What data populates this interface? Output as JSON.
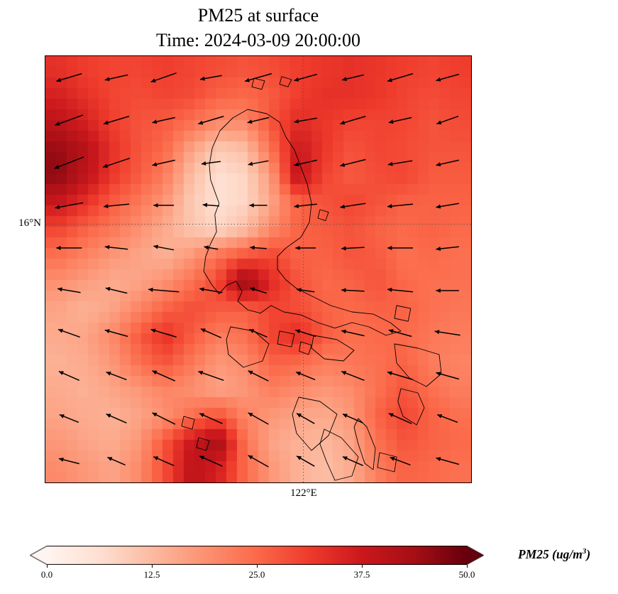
{
  "title": {
    "line1": "PM25 at surface",
    "line2": "Time: 2024-03-09 20:00:00"
  },
  "axes": {
    "y_tick_label": "16°N",
    "x_tick_label": "122°E"
  },
  "colorbar": {
    "ticks": [
      "0.0",
      "12.5",
      "25.0",
      "37.5",
      "50.0"
    ],
    "label_prefix": "PM25 (ug/m",
    "label_sup": "3",
    "label_suffix": ")"
  },
  "chart_data": {
    "type": "heatmap",
    "title": "PM25 at surface",
    "subtitle": "Time: 2024-03-09 20:00:00",
    "variable": "PM25",
    "units": "ug/m3",
    "vmin": 0,
    "vmax": 50,
    "colormap": "Reds",
    "colormap_stops": [
      {
        "t": 0.0,
        "color": "#fff5f0"
      },
      {
        "t": 0.125,
        "color": "#fee0d2"
      },
      {
        "t": 0.25,
        "color": "#fcbba1"
      },
      {
        "t": 0.375,
        "color": "#fc9272"
      },
      {
        "t": 0.5,
        "color": "#fb6a4a"
      },
      {
        "t": 0.625,
        "color": "#ef3b2c"
      },
      {
        "t": 0.75,
        "color": "#cb181d"
      },
      {
        "t": 0.875,
        "color": "#a50f15"
      },
      {
        "t": 1.0,
        "color": "#67000d"
      }
    ],
    "x_tick": {
      "label": "122°E",
      "frac": 0.606
    },
    "y_tick": {
      "label": "16°N",
      "frac": 0.394
    },
    "grid_rows": 16,
    "grid_cols": 16,
    "grid": [
      [
        33,
        31,
        30,
        30,
        31,
        30,
        29,
        28,
        29,
        31,
        32,
        33,
        32,
        31,
        30,
        31
      ],
      [
        36,
        33,
        30,
        29,
        30,
        29,
        26,
        25,
        27,
        31,
        33,
        33,
        32,
        30,
        29,
        30
      ],
      [
        40,
        36,
        31,
        28,
        27,
        24,
        20,
        20,
        28,
        34,
        32,
        30,
        30,
        30,
        28,
        29
      ],
      [
        45,
        41,
        33,
        28,
        25,
        16,
        10,
        12,
        24,
        38,
        32,
        28,
        30,
        29,
        28,
        28
      ],
      [
        46,
        40,
        32,
        27,
        22,
        12,
        6,
        8,
        18,
        40,
        30,
        27,
        29,
        30,
        27,
        27
      ],
      [
        38,
        33,
        27,
        23,
        18,
        10,
        6,
        8,
        16,
        26,
        28,
        30,
        28,
        26,
        26,
        26
      ],
      [
        30,
        26,
        23,
        19,
        15,
        11,
        8,
        12,
        20,
        26,
        27,
        28,
        26,
        25,
        26,
        25
      ],
      [
        24,
        21,
        18,
        16,
        14,
        18,
        24,
        28,
        30,
        26,
        26,
        28,
        27,
        24,
        25,
        24
      ],
      [
        19,
        17,
        15,
        16,
        19,
        24,
        30,
        46,
        34,
        28,
        25,
        26,
        28,
        25,
        24,
        24
      ],
      [
        16,
        14,
        16,
        21,
        26,
        29,
        27,
        26,
        30,
        29,
        26,
        25,
        26,
        26,
        24,
        23
      ],
      [
        15,
        16,
        20,
        27,
        33,
        27,
        22,
        24,
        30,
        34,
        27,
        24,
        25,
        25,
        23,
        22
      ],
      [
        14,
        15,
        18,
        24,
        28,
        23,
        18,
        20,
        26,
        25,
        22,
        23,
        24,
        26,
        22,
        21
      ],
      [
        15,
        14,
        16,
        18,
        21,
        19,
        16,
        18,
        22,
        20,
        18,
        20,
        24,
        28,
        24,
        22
      ],
      [
        16,
        15,
        14,
        16,
        19,
        24,
        28,
        21,
        18,
        16,
        15,
        18,
        26,
        30,
        26,
        24
      ],
      [
        18,
        16,
        15,
        18,
        28,
        38,
        44,
        24,
        16,
        14,
        13,
        16,
        24,
        28,
        26,
        25
      ],
      [
        20,
        18,
        16,
        20,
        29,
        40,
        36,
        25,
        18,
        14,
        12,
        15,
        22,
        26,
        25,
        24
      ]
    ],
    "wind": {
      "scale": 36,
      "u": [
        [
          -1.0,
          -0.9,
          -1.0,
          -0.85,
          -1.05,
          -0.9,
          -0.85,
          -1.0,
          -0.9
        ],
        [
          -1.1,
          -1.0,
          -0.9,
          -1.0,
          -0.85,
          -0.9,
          -1.0,
          -0.9,
          -0.85
        ],
        [
          -1.15,
          -1.05,
          -0.9,
          -0.75,
          -0.8,
          -0.9,
          -1.0,
          -0.95,
          -0.9
        ],
        [
          -1.1,
          -1.0,
          -0.8,
          -0.65,
          -0.7,
          -0.9,
          -1.0,
          -1.0,
          -0.9
        ],
        [
          -1.0,
          -0.9,
          -0.8,
          -0.55,
          -0.65,
          -0.8,
          -0.9,
          -1.0,
          -0.9
        ],
        [
          -0.9,
          -0.85,
          -1.2,
          -0.9,
          -0.65,
          -0.7,
          -0.9,
          -1.0,
          -0.9
        ],
        [
          -0.85,
          -0.9,
          -1.0,
          -0.8,
          -0.7,
          -0.8,
          -0.9,
          -0.9,
          -1.0
        ],
        [
          -0.8,
          -0.8,
          -0.9,
          -1.0,
          -0.8,
          -0.75,
          -0.9,
          -1.0,
          -0.9
        ],
        [
          -0.75,
          -0.8,
          -0.9,
          -0.9,
          -0.8,
          -0.7,
          -0.8,
          -0.9,
          -0.8
        ],
        [
          -0.8,
          -0.7,
          -0.8,
          -0.9,
          -0.8,
          -0.7,
          -0.8,
          -0.8,
          -0.9
        ]
      ],
      "v": [
        [
          -0.3,
          -0.2,
          -0.35,
          -0.15,
          -0.3,
          -0.25,
          -0.2,
          -0.3,
          -0.25
        ],
        [
          -0.4,
          -0.3,
          -0.2,
          -0.3,
          -0.2,
          -0.15,
          -0.3,
          -0.2,
          -0.3
        ],
        [
          -0.45,
          -0.35,
          -0.2,
          -0.1,
          -0.15,
          -0.2,
          -0.25,
          -0.15,
          -0.2
        ],
        [
          -0.2,
          -0.1,
          0.0,
          0.05,
          0.0,
          -0.1,
          -0.15,
          -0.1,
          -0.15
        ],
        [
          0.0,
          0.1,
          0.15,
          0.1,
          0.05,
          0.0,
          -0.05,
          0.0,
          -0.1
        ],
        [
          0.15,
          0.2,
          0.1,
          0.15,
          0.2,
          0.1,
          0.05,
          0.1,
          0.0
        ],
        [
          0.3,
          0.25,
          0.3,
          0.35,
          0.3,
          0.25,
          0.2,
          0.25,
          0.15
        ],
        [
          0.35,
          0.3,
          0.4,
          0.35,
          0.4,
          0.3,
          0.35,
          0.3,
          0.25
        ],
        [
          0.3,
          0.35,
          0.45,
          0.4,
          0.45,
          0.4,
          0.35,
          0.4,
          0.3
        ],
        [
          0.2,
          0.3,
          0.35,
          0.4,
          0.45,
          0.4,
          0.35,
          0.3,
          0.25
        ]
      ]
    },
    "coastlines": [
      {
        "name": "luzon",
        "points": [
          [
            0.475,
            0.125
          ],
          [
            0.52,
            0.135
          ],
          [
            0.55,
            0.155
          ],
          [
            0.565,
            0.19
          ],
          [
            0.585,
            0.22
          ],
          [
            0.6,
            0.26
          ],
          [
            0.615,
            0.3
          ],
          [
            0.625,
            0.345
          ],
          [
            0.62,
            0.39
          ],
          [
            0.6,
            0.425
          ],
          [
            0.565,
            0.45
          ],
          [
            0.545,
            0.47
          ],
          [
            0.545,
            0.5
          ],
          [
            0.565,
            0.525
          ],
          [
            0.59,
            0.545
          ],
          [
            0.63,
            0.565
          ],
          [
            0.67,
            0.585
          ],
          [
            0.72,
            0.6
          ],
          [
            0.77,
            0.605
          ],
          [
            0.81,
            0.625
          ],
          [
            0.835,
            0.645
          ],
          [
            0.8,
            0.655
          ],
          [
            0.76,
            0.635
          ],
          [
            0.72,
            0.625
          ],
          [
            0.68,
            0.638
          ],
          [
            0.64,
            0.625
          ],
          [
            0.6,
            0.607
          ],
          [
            0.56,
            0.6
          ],
          [
            0.53,
            0.585
          ],
          [
            0.505,
            0.603
          ],
          [
            0.475,
            0.595
          ],
          [
            0.452,
            0.575
          ],
          [
            0.462,
            0.552
          ],
          [
            0.448,
            0.528
          ],
          [
            0.425,
            0.538
          ],
          [
            0.408,
            0.558
          ],
          [
            0.39,
            0.535
          ],
          [
            0.372,
            0.505
          ],
          [
            0.376,
            0.472
          ],
          [
            0.388,
            0.44
          ],
          [
            0.402,
            0.412
          ],
          [
            0.398,
            0.372
          ],
          [
            0.408,
            0.345
          ],
          [
            0.398,
            0.318
          ],
          [
            0.388,
            0.29
          ],
          [
            0.385,
            0.255
          ],
          [
            0.392,
            0.215
          ],
          [
            0.41,
            0.175
          ],
          [
            0.44,
            0.145
          ]
        ]
      },
      {
        "name": "mindoro",
        "points": [
          [
            0.435,
            0.635
          ],
          [
            0.49,
            0.645
          ],
          [
            0.525,
            0.675
          ],
          [
            0.51,
            0.715
          ],
          [
            0.465,
            0.73
          ],
          [
            0.43,
            0.7
          ],
          [
            0.425,
            0.665
          ]
        ]
      },
      {
        "name": "marinduque",
        "points": [
          [
            0.55,
            0.645
          ],
          [
            0.585,
            0.652
          ],
          [
            0.578,
            0.682
          ],
          [
            0.545,
            0.675
          ]
        ]
      },
      {
        "name": "burias",
        "points": [
          [
            0.6,
            0.67
          ],
          [
            0.625,
            0.678
          ],
          [
            0.618,
            0.7
          ],
          [
            0.596,
            0.692
          ]
        ]
      },
      {
        "name": "masbate",
        "points": [
          [
            0.63,
            0.655
          ],
          [
            0.685,
            0.665
          ],
          [
            0.725,
            0.69
          ],
          [
            0.7,
            0.715
          ],
          [
            0.655,
            0.71
          ],
          [
            0.625,
            0.685
          ]
        ]
      },
      {
        "name": "catanduanes",
        "points": [
          [
            0.825,
            0.585
          ],
          [
            0.858,
            0.592
          ],
          [
            0.852,
            0.622
          ],
          [
            0.82,
            0.615
          ]
        ]
      },
      {
        "name": "polillo",
        "points": [
          [
            0.645,
            0.36
          ],
          [
            0.665,
            0.366
          ],
          [
            0.658,
            0.386
          ],
          [
            0.64,
            0.38
          ]
        ]
      },
      {
        "name": "samar",
        "points": [
          [
            0.82,
            0.675
          ],
          [
            0.875,
            0.685
          ],
          [
            0.925,
            0.7
          ],
          [
            0.93,
            0.745
          ],
          [
            0.895,
            0.775
          ],
          [
            0.855,
            0.755
          ],
          [
            0.825,
            0.72
          ]
        ]
      },
      {
        "name": "leyte",
        "points": [
          [
            0.835,
            0.78
          ],
          [
            0.875,
            0.79
          ],
          [
            0.89,
            0.825
          ],
          [
            0.872,
            0.865
          ],
          [
            0.84,
            0.845
          ],
          [
            0.828,
            0.81
          ]
        ]
      },
      {
        "name": "panay",
        "points": [
          [
            0.595,
            0.8
          ],
          [
            0.645,
            0.81
          ],
          [
            0.685,
            0.84
          ],
          [
            0.665,
            0.89
          ],
          [
            0.625,
            0.925
          ],
          [
            0.59,
            0.885
          ],
          [
            0.58,
            0.84
          ]
        ]
      },
      {
        "name": "negros",
        "points": [
          [
            0.655,
            0.875
          ],
          [
            0.695,
            0.895
          ],
          [
            0.735,
            0.94
          ],
          [
            0.72,
            0.985
          ],
          [
            0.68,
            0.995
          ],
          [
            0.66,
            0.95
          ],
          [
            0.645,
            0.91
          ]
        ]
      },
      {
        "name": "cebu",
        "points": [
          [
            0.735,
            0.85
          ],
          [
            0.755,
            0.87
          ],
          [
            0.775,
            0.92
          ],
          [
            0.77,
            0.97
          ],
          [
            0.75,
            0.955
          ],
          [
            0.735,
            0.91
          ],
          [
            0.725,
            0.87
          ]
        ]
      },
      {
        "name": "bohol",
        "points": [
          [
            0.785,
            0.93
          ],
          [
            0.825,
            0.94
          ],
          [
            0.82,
            0.975
          ],
          [
            0.78,
            0.965
          ]
        ]
      },
      {
        "name": "babuyan-1",
        "points": [
          [
            0.49,
            0.052
          ],
          [
            0.515,
            0.058
          ],
          [
            0.508,
            0.078
          ],
          [
            0.485,
            0.072
          ]
        ]
      },
      {
        "name": "babuyan-2",
        "points": [
          [
            0.555,
            0.048
          ],
          [
            0.578,
            0.055
          ],
          [
            0.57,
            0.072
          ],
          [
            0.55,
            0.066
          ]
        ]
      },
      {
        "name": "cuyo-1",
        "points": [
          [
            0.325,
            0.845
          ],
          [
            0.35,
            0.852
          ],
          [
            0.345,
            0.875
          ],
          [
            0.32,
            0.868
          ]
        ]
      },
      {
        "name": "cuyo-2",
        "points": [
          [
            0.36,
            0.895
          ],
          [
            0.385,
            0.902
          ],
          [
            0.378,
            0.925
          ],
          [
            0.355,
            0.918
          ]
        ]
      }
    ]
  }
}
